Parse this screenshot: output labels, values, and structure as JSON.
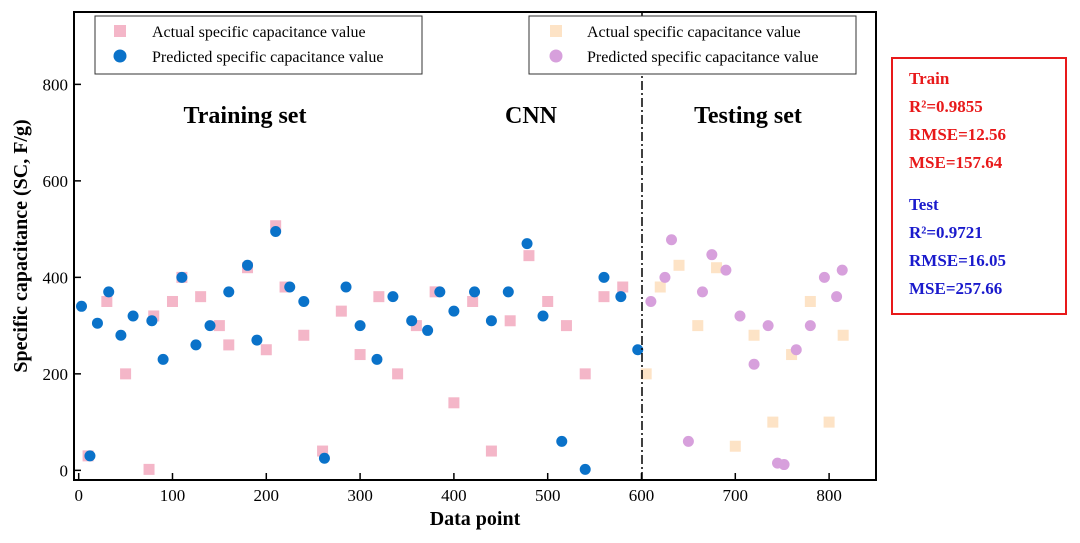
{
  "chart_data": {
    "type": "scatter",
    "title": "",
    "xlabel": "Data point",
    "ylabel": "Specific capacitance (SC, F/g)",
    "xlim": [
      -5,
      850
    ],
    "ylim": [
      -20,
      950
    ],
    "xticks": [
      0,
      100,
      200,
      300,
      400,
      500,
      600,
      700,
      800
    ],
    "yticks": [
      0,
      200,
      400,
      600,
      800
    ],
    "split_x": 600,
    "annotations": {
      "training": "Training set",
      "model": "CNN",
      "testing": "Testing set"
    },
    "legend_train": {
      "position": "top-left",
      "actual": "Actual specific capacitance value",
      "predicted": "Predicted specific capacitance value"
    },
    "legend_test": {
      "position": "top-right",
      "actual": "Actual specific capacitance value",
      "predicted": "Predicted specific capacitance value"
    },
    "colors": {
      "train_actual": "#f4b6c8",
      "train_predicted": "#0a72c9",
      "test_actual": "#fde3c6",
      "test_predicted": "#d7a0dc"
    },
    "series": [
      {
        "name": "Train actual specific capacitance",
        "x": [
          10,
          30,
          50,
          75,
          80,
          100,
          110,
          130,
          150,
          160,
          180,
          200,
          210,
          220,
          240,
          260,
          280,
          300,
          320,
          340,
          360,
          380,
          400,
          420,
          440,
          460,
          480,
          500,
          520,
          540,
          560,
          580
        ],
        "y": [
          30,
          350,
          200,
          2,
          320,
          350,
          400,
          360,
          300,
          260,
          420,
          250,
          507,
          380,
          280,
          40,
          330,
          240,
          360,
          200,
          300,
          370,
          140,
          350,
          40,
          310,
          445,
          350,
          300,
          200,
          360,
          380
        ]
      },
      {
        "name": "Train predicted specific capacitance",
        "x": [
          3,
          12,
          20,
          32,
          45,
          58,
          78,
          90,
          110,
          125,
          140,
          160,
          180,
          190,
          210,
          225,
          240,
          262,
          285,
          300,
          318,
          335,
          355,
          372,
          385,
          400,
          422,
          440,
          458,
          478,
          495,
          515,
          540,
          560,
          578,
          596
        ],
        "y": [
          340,
          30,
          305,
          370,
          280,
          320,
          310,
          230,
          400,
          260,
          300,
          370,
          425,
          270,
          495,
          380,
          350,
          25,
          380,
          300,
          230,
          360,
          310,
          290,
          370,
          330,
          370,
          310,
          370,
          470,
          320,
          60,
          2,
          400,
          360,
          250
        ]
      },
      {
        "name": "Test actual specific capacitance",
        "x": [
          605,
          620,
          640,
          660,
          680,
          700,
          720,
          740,
          760,
          780,
          800,
          815
        ],
        "y": [
          200,
          380,
          425,
          300,
          420,
          50,
          280,
          100,
          240,
          350,
          100,
          280
        ]
      },
      {
        "name": "Test predicted specific capacitance",
        "x": [
          610,
          625,
          632,
          650,
          665,
          675,
          690,
          705,
          720,
          735,
          745,
          752,
          765,
          780,
          795,
          808,
          814
        ],
        "y": [
          350,
          400,
          478,
          60,
          370,
          447,
          415,
          320,
          220,
          300,
          15,
          12,
          250,
          300,
          400,
          360,
          415
        ]
      }
    ]
  },
  "stats": {
    "train_title": "Train",
    "train_r2": "R²=0.9855",
    "train_rmse": "RMSE=12.56",
    "train_mse": "MSE=157.64",
    "test_title": "Test",
    "test_r2": "R²=0.9721",
    "test_rmse": "RMSE=16.05",
    "test_mse": "MSE=257.66"
  }
}
